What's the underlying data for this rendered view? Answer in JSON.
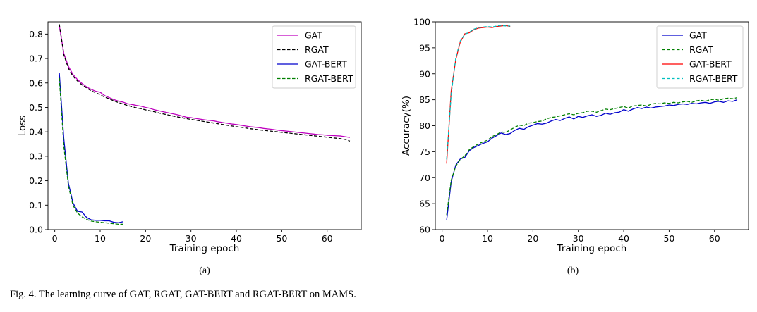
{
  "caption": "Fig. 4.  The learning curve of GAT, RGAT, GAT-BERT and RGAT-BERT on MAMS.",
  "chart_data": [
    {
      "type": "line",
      "sublabel": "(a)",
      "xlabel": "Training epoch",
      "ylabel": "Loss",
      "xlim": [
        -1.5,
        67.5
      ],
      "ylim": [
        0.0,
        0.85
      ],
      "xticks": [
        0,
        10,
        20,
        30,
        40,
        50,
        60
      ],
      "yticks": [
        0.0,
        0.1,
        0.2,
        0.3,
        0.4,
        0.5,
        0.6,
        0.7,
        0.8
      ],
      "grid": false,
      "legend_position": "top-right",
      "series": [
        {
          "name": "GAT",
          "color": "#bf00bf",
          "dash": "solid",
          "epoch_start": 1,
          "values": [
            0.835,
            0.72,
            0.668,
            0.635,
            0.614,
            0.598,
            0.584,
            0.574,
            0.566,
            0.562,
            0.548,
            0.54,
            0.532,
            0.526,
            0.522,
            0.515,
            0.512,
            0.508,
            0.505,
            0.5,
            0.496,
            0.49,
            0.486,
            0.482,
            0.478,
            0.474,
            0.47,
            0.465,
            0.46,
            0.458,
            0.455,
            0.452,
            0.449,
            0.447,
            0.445,
            0.441,
            0.438,
            0.435,
            0.432,
            0.43,
            0.427,
            0.424,
            0.421,
            0.419,
            0.417,
            0.414,
            0.412,
            0.41,
            0.407,
            0.405,
            0.403,
            0.401,
            0.399,
            0.397,
            0.395,
            0.393,
            0.391,
            0.389,
            0.388,
            0.386,
            0.385,
            0.384,
            0.383,
            0.38,
            0.377
          ]
        },
        {
          "name": "RGAT",
          "color": "#000000",
          "dash": "dashed",
          "epoch_start": 1,
          "values": [
            0.84,
            0.715,
            0.66,
            0.628,
            0.608,
            0.592,
            0.58,
            0.568,
            0.56,
            0.552,
            0.542,
            0.535,
            0.527,
            0.52,
            0.514,
            0.508,
            0.503,
            0.498,
            0.495,
            0.49,
            0.486,
            0.482,
            0.477,
            0.473,
            0.469,
            0.465,
            0.461,
            0.458,
            0.454,
            0.451,
            0.448,
            0.445,
            0.442,
            0.439,
            0.436,
            0.433,
            0.43,
            0.427,
            0.424,
            0.421,
            0.419,
            0.416,
            0.413,
            0.411,
            0.408,
            0.406,
            0.404,
            0.402,
            0.4,
            0.398,
            0.396,
            0.394,
            0.392,
            0.39,
            0.388,
            0.386,
            0.384,
            0.382,
            0.38,
            0.378,
            0.376,
            0.374,
            0.372,
            0.369,
            0.362
          ]
        },
        {
          "name": "GAT-BERT",
          "color": "#0000cc",
          "dash": "solid",
          "epoch_start": 1,
          "values": [
            0.64,
            0.37,
            0.19,
            0.11,
            0.075,
            0.072,
            0.05,
            0.04,
            0.038,
            0.038,
            0.036,
            0.036,
            0.03,
            0.028,
            0.032
          ]
        },
        {
          "name": "RGAT-BERT",
          "color": "#007f00",
          "dash": "dashed",
          "epoch_start": 1,
          "values": [
            0.62,
            0.34,
            0.18,
            0.1,
            0.068,
            0.052,
            0.042,
            0.035,
            0.032,
            0.03,
            0.028,
            0.026,
            0.024,
            0.022,
            0.022
          ]
        }
      ]
    },
    {
      "type": "line",
      "sublabel": "(b)",
      "xlabel": "Training epoch",
      "ylabel": "Accuracy(%)",
      "xlim": [
        -1.5,
        67.5
      ],
      "ylim": [
        60,
        100
      ],
      "xticks": [
        0,
        10,
        20,
        30,
        40,
        50,
        60
      ],
      "yticks": [
        60,
        65,
        70,
        75,
        80,
        85,
        90,
        95,
        100
      ],
      "grid": false,
      "legend_position": "top-right",
      "series": [
        {
          "name": "GAT",
          "color": "#0000cc",
          "dash": "solid",
          "epoch_start": 1,
          "values": [
            61.8,
            69.2,
            72.4,
            73.6,
            73.9,
            75.2,
            75.8,
            76.2,
            76.6,
            76.9,
            77.6,
            78.1,
            78.6,
            78.3,
            78.5,
            79.1,
            79.5,
            79.3,
            79.8,
            80.1,
            80.4,
            80.3,
            80.5,
            80.9,
            81.2,
            81.0,
            81.4,
            81.7,
            81.3,
            81.8,
            81.6,
            81.9,
            82.1,
            81.8,
            82.0,
            82.4,
            82.2,
            82.5,
            82.6,
            83.1,
            82.8,
            83.2,
            83.5,
            83.3,
            83.6,
            83.4,
            83.6,
            83.7,
            83.8,
            84.0,
            83.9,
            84.1,
            84.2,
            84.1,
            84.3,
            84.2,
            84.4,
            84.5,
            84.3,
            84.6,
            84.7,
            84.5,
            84.8,
            84.7,
            85.0
          ]
        },
        {
          "name": "RGAT",
          "color": "#007f00",
          "dash": "dashed",
          "epoch_start": 1,
          "values": [
            62.8,
            69.5,
            72.2,
            73.5,
            74.2,
            75.4,
            76.0,
            76.5,
            76.9,
            77.2,
            77.9,
            78.3,
            78.8,
            78.7,
            79.2,
            79.7,
            80.1,
            80.0,
            80.5,
            80.6,
            80.8,
            80.9,
            81.3,
            81.6,
            81.7,
            81.9,
            82.1,
            82.3,
            82.1,
            82.4,
            82.5,
            82.8,
            82.8,
            82.6,
            82.9,
            83.2,
            83.1,
            83.3,
            83.5,
            83.7,
            83.4,
            83.8,
            83.9,
            84.0,
            83.8,
            84.1,
            84.3,
            84.2,
            84.4,
            84.3,
            84.5,
            84.4,
            84.6,
            84.7,
            84.5,
            84.8,
            84.9,
            84.7,
            85.0,
            85.1,
            84.9,
            85.2,
            85.3,
            85.2,
            85.4
          ]
        },
        {
          "name": "GAT-BERT",
          "color": "#ff0000",
          "dash": "solid",
          "epoch_start": 1,
          "values": [
            72.7,
            86.7,
            92.7,
            96.1,
            97.7,
            97.9,
            98.5,
            98.8,
            98.9,
            99.0,
            98.9,
            99.1,
            99.2,
            99.3,
            99.1
          ]
        },
        {
          "name": "RGAT-BERT",
          "color": "#00bfbf",
          "dash": "dashed",
          "epoch_start": 1,
          "values": [
            73.5,
            86.0,
            93.0,
            96.3,
            97.6,
            98.0,
            98.6,
            98.9,
            99.0,
            99.1,
            99.0,
            99.2,
            99.3,
            99.2,
            99.2
          ]
        }
      ]
    }
  ]
}
